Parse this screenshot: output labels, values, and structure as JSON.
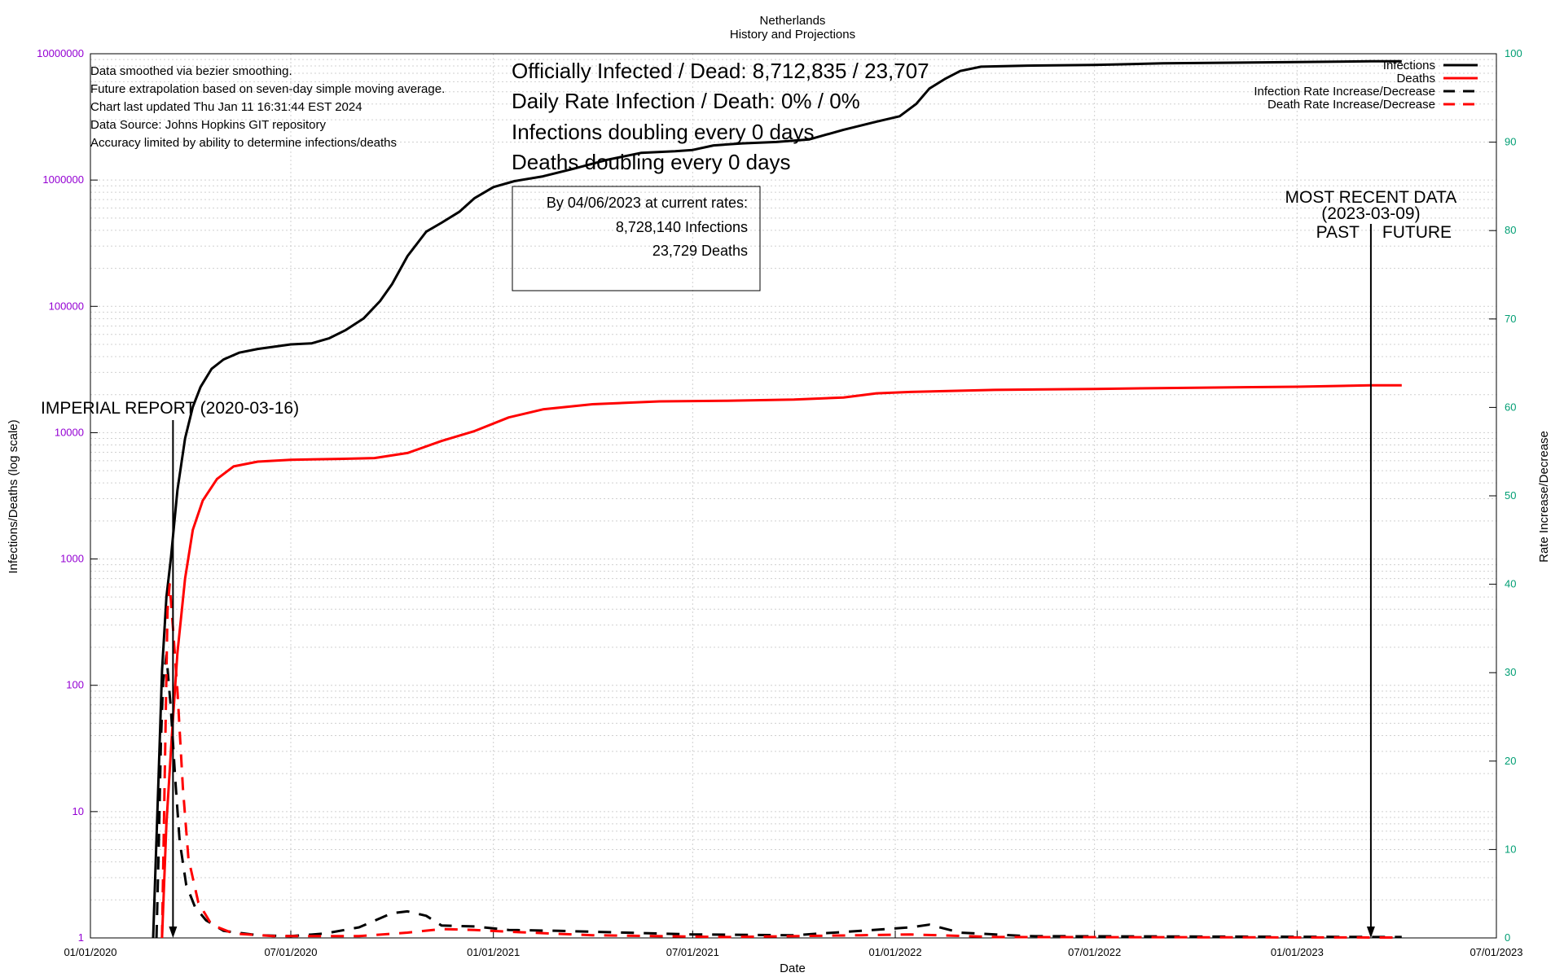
{
  "chart_data": {
    "type": "line",
    "title": "Netherlands",
    "subtitle": "History and Projections",
    "xlabel": "Date",
    "ylabel": "Infections/Deaths (log scale)",
    "y2label": "Rate Increase/Decrease",
    "x_range": [
      "2020-01-01",
      "2023-07-01"
    ],
    "y_range": [
      1,
      10000000
    ],
    "y_scale": "log",
    "y2_range": [
      0,
      100
    ],
    "x_ticks": [
      {
        "date": "2020-01-01",
        "label": "01/01/2020"
      },
      {
        "date": "2020-07-01",
        "label": "07/01/2020"
      },
      {
        "date": "2021-01-01",
        "label": "01/01/2021"
      },
      {
        "date": "2021-07-01",
        "label": "07/01/2021"
      },
      {
        "date": "2022-01-01",
        "label": "01/01/2022"
      },
      {
        "date": "2022-07-01",
        "label": "07/01/2022"
      },
      {
        "date": "2023-01-01",
        "label": "01/01/2023"
      },
      {
        "date": "2023-07-01",
        "label": "07/01/2023"
      }
    ],
    "y_ticks": [
      {
        "value": 1,
        "label": "1"
      },
      {
        "value": 10,
        "label": "10"
      },
      {
        "value": 100,
        "label": "100"
      },
      {
        "value": 1000,
        "label": "1000"
      },
      {
        "value": 10000,
        "label": "10000"
      },
      {
        "value": 100000,
        "label": "100000"
      },
      {
        "value": 1000000,
        "label": "1000000"
      },
      {
        "value": 10000000,
        "label": "10000000"
      }
    ],
    "y2_ticks": [
      {
        "value": 0,
        "label": "0"
      },
      {
        "value": 10,
        "label": "10"
      },
      {
        "value": 20,
        "label": "20"
      },
      {
        "value": 30,
        "label": "30"
      },
      {
        "value": 40,
        "label": "40"
      },
      {
        "value": 50,
        "label": "50"
      },
      {
        "value": 60,
        "label": "60"
      },
      {
        "value": 70,
        "label": "70"
      },
      {
        "value": 80,
        "label": "80"
      },
      {
        "value": 90,
        "label": "90"
      },
      {
        "value": 100,
        "label": "100"
      }
    ],
    "grid": true,
    "legend_position": "top-right",
    "series": [
      {
        "name": "Infections",
        "color": "#000000",
        "style": "solid",
        "axis": "left",
        "points": [
          [
            "2020-02-27",
            1
          ],
          [
            "2020-03-03",
            20
          ],
          [
            "2020-03-06",
            130
          ],
          [
            "2020-03-10",
            500
          ],
          [
            "2020-03-14",
            1000
          ],
          [
            "2020-03-20",
            3500
          ],
          [
            "2020-03-27",
            9000
          ],
          [
            "2020-04-03",
            16000
          ],
          [
            "2020-04-10",
            23000
          ],
          [
            "2020-04-20",
            32000
          ],
          [
            "2020-05-01",
            38000
          ],
          [
            "2020-05-15",
            43000
          ],
          [
            "2020-06-01",
            46000
          ],
          [
            "2020-07-01",
            50000
          ],
          [
            "2020-07-20",
            51000
          ],
          [
            "2020-08-05",
            56000
          ],
          [
            "2020-08-20",
            65000
          ],
          [
            "2020-09-05",
            80000
          ],
          [
            "2020-09-20",
            110000
          ],
          [
            "2020-10-01",
            150000
          ],
          [
            "2020-10-15",
            250000
          ],
          [
            "2020-11-01",
            390000
          ],
          [
            "2020-11-15",
            460000
          ],
          [
            "2020-12-01",
            560000
          ],
          [
            "2020-12-15",
            720000
          ],
          [
            "2021-01-01",
            880000
          ],
          [
            "2021-01-20",
            980000
          ],
          [
            "2021-02-15",
            1070000
          ],
          [
            "2021-03-15",
            1230000
          ],
          [
            "2021-04-15",
            1450000
          ],
          [
            "2021-05-15",
            1640000
          ],
          [
            "2021-06-15",
            1690000
          ],
          [
            "2021-07-01",
            1730000
          ],
          [
            "2021-07-20",
            1880000
          ],
          [
            "2021-08-15",
            1950000
          ],
          [
            "2021-09-15",
            2000000
          ],
          [
            "2021-10-15",
            2100000
          ],
          [
            "2021-11-15",
            2500000
          ],
          [
            "2021-12-15",
            2900000
          ],
          [
            "2022-01-05",
            3200000
          ],
          [
            "2022-01-20",
            4000000
          ],
          [
            "2022-02-01",
            5300000
          ],
          [
            "2022-02-15",
            6300000
          ],
          [
            "2022-03-01",
            7300000
          ],
          [
            "2022-03-20",
            7900000
          ],
          [
            "2022-05-01",
            8050000
          ],
          [
            "2022-07-01",
            8150000
          ],
          [
            "2022-09-01",
            8400000
          ],
          [
            "2022-12-01",
            8550000
          ],
          [
            "2023-03-09",
            8712835
          ],
          [
            "2023-04-06",
            8728140
          ]
        ]
      },
      {
        "name": "Deaths",
        "color": "#ff0000",
        "style": "solid",
        "axis": "left",
        "points": [
          [
            "2020-03-06",
            1
          ],
          [
            "2020-03-10",
            8
          ],
          [
            "2020-03-15",
            40
          ],
          [
            "2020-03-20",
            180
          ],
          [
            "2020-03-27",
            700
          ],
          [
            "2020-04-03",
            1700
          ],
          [
            "2020-04-12",
            2900
          ],
          [
            "2020-04-25",
            4300
          ],
          [
            "2020-05-10",
            5400
          ],
          [
            "2020-06-01",
            5900
          ],
          [
            "2020-07-01",
            6100
          ],
          [
            "2020-08-15",
            6200
          ],
          [
            "2020-09-15",
            6300
          ],
          [
            "2020-10-15",
            6900
          ],
          [
            "2020-11-15",
            8600
          ],
          [
            "2020-12-15",
            10300
          ],
          [
            "2021-01-15",
            13200
          ],
          [
            "2021-02-15",
            15300
          ],
          [
            "2021-04-01",
            16800
          ],
          [
            "2021-06-01",
            17700
          ],
          [
            "2021-08-01",
            17900
          ],
          [
            "2021-10-01",
            18300
          ],
          [
            "2021-11-15",
            19000
          ],
          [
            "2021-12-15",
            20500
          ],
          [
            "2022-01-15",
            21000
          ],
          [
            "2022-04-01",
            21800
          ],
          [
            "2022-07-01",
            22200
          ],
          [
            "2022-10-01",
            22700
          ],
          [
            "2023-01-01",
            23100
          ],
          [
            "2023-03-09",
            23707
          ],
          [
            "2023-04-06",
            23729
          ]
        ]
      },
      {
        "name": "Infection Rate Increase/Decrease",
        "color": "#000000",
        "style": "dashed",
        "axis": "right",
        "points": [
          [
            "2020-03-01",
            0
          ],
          [
            "2020-03-03",
            10
          ],
          [
            "2020-03-05",
            22
          ],
          [
            "2020-03-07",
            29
          ],
          [
            "2020-03-10",
            32
          ],
          [
            "2020-03-14",
            26
          ],
          [
            "2020-03-18",
            18
          ],
          [
            "2020-03-22",
            11
          ],
          [
            "2020-03-28",
            6
          ],
          [
            "2020-04-05",
            3.5
          ],
          [
            "2020-04-15",
            2
          ],
          [
            "2020-05-01",
            0.8
          ],
          [
            "2020-06-01",
            0.3
          ],
          [
            "2020-07-01",
            0.2
          ],
          [
            "2020-08-01",
            0.5
          ],
          [
            "2020-09-01",
            1.2
          ],
          [
            "2020-10-01",
            2.8
          ],
          [
            "2020-10-15",
            3
          ],
          [
            "2020-11-01",
            2.5
          ],
          [
            "2020-11-15",
            1.4
          ],
          [
            "2020-12-15",
            1.3
          ],
          [
            "2021-01-15",
            0.9
          ],
          [
            "2021-03-01",
            0.8
          ],
          [
            "2021-05-01",
            0.6
          ],
          [
            "2021-07-01",
            0.4
          ],
          [
            "2021-10-01",
            0.3
          ],
          [
            "2021-12-01",
            0.8
          ],
          [
            "2022-01-15",
            1.2
          ],
          [
            "2022-02-01",
            1.5
          ],
          [
            "2022-03-01",
            0.6
          ],
          [
            "2022-05-01",
            0.2
          ],
          [
            "2023-04-06",
            0.1
          ]
        ]
      },
      {
        "name": "Death Rate Increase/Decrease",
        "color": "#ff0000",
        "style": "dashed",
        "axis": "right",
        "points": [
          [
            "2020-03-06",
            0
          ],
          [
            "2020-03-09",
            22
          ],
          [
            "2020-03-11",
            37
          ],
          [
            "2020-03-13",
            40
          ],
          [
            "2020-03-16",
            35
          ],
          [
            "2020-03-20",
            28
          ],
          [
            "2020-03-25",
            17
          ],
          [
            "2020-03-30",
            9
          ],
          [
            "2020-04-08",
            4
          ],
          [
            "2020-04-20",
            1.5
          ],
          [
            "2020-05-10",
            0.5
          ],
          [
            "2020-06-15",
            0.2
          ],
          [
            "2020-09-01",
            0.2
          ],
          [
            "2020-10-15",
            0.6
          ],
          [
            "2020-11-15",
            1
          ],
          [
            "2020-12-15",
            0.9
          ],
          [
            "2021-01-15",
            0.7
          ],
          [
            "2021-04-01",
            0.3
          ],
          [
            "2021-08-01",
            0.1
          ],
          [
            "2021-12-01",
            0.3
          ],
          [
            "2022-01-15",
            0.4
          ],
          [
            "2022-04-01",
            0.1
          ],
          [
            "2023-04-06",
            0.05
          ]
        ]
      }
    ],
    "annotations": {
      "notes": [
        "Data smoothed via bezier smoothing.",
        "Future extrapolation based on seven-day simple moving average.",
        "Chart last updated Thu Jan 11 16:31:44 EST 2024",
        "Data Source: Johns Hopkins GIT repository",
        "Accuracy limited by ability to determine infections/deaths"
      ],
      "headline": [
        "Officially Infected / Dead:  8,712,835 / 23,707",
        "Daily Rate Infection / Death:  0% / 0%",
        "Infections doubling every 0 days",
        "Deaths doubling every 0 days"
      ],
      "projection_box": [
        "By 04/06/2023 at current rates:",
        "8,728,140 Infections",
        "23,729 Deaths"
      ],
      "imperial_report": {
        "label": "IMPERIAL REPORT (2020-03-16)",
        "date": "2020-03-16"
      },
      "most_recent": {
        "date": "2023-03-09",
        "line1": "MOST RECENT DATA",
        "line2": "(2023-03-09)",
        "past": "PAST",
        "future": "FUTURE"
      }
    }
  }
}
